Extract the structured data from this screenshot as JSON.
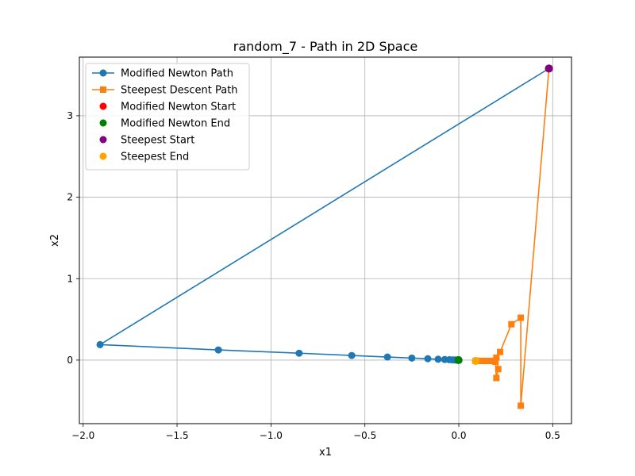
{
  "chart_data": {
    "type": "line",
    "title": "random_7 - Path in 2D Space",
    "xlabel": "x1",
    "ylabel": "x2",
    "xlim": [
      -2.02,
      0.6
    ],
    "ylim": [
      -0.78,
      3.72
    ],
    "xticks": [
      -2.0,
      -1.5,
      -1.0,
      -0.5,
      0.0,
      0.5
    ],
    "xtick_labels": [
      "−2.0",
      "−1.5",
      "−1.0",
      "−0.5",
      "0.0",
      "0.5"
    ],
    "yticks": [
      0,
      1,
      2,
      3
    ],
    "ytick_labels": [
      "0",
      "1",
      "2",
      "3"
    ],
    "grid": true,
    "legend_position": "top-left",
    "series": [
      {
        "name": "Modified Newton Path",
        "kind": "line",
        "marker": "circle",
        "color": "#1f77b4",
        "x": [
          0.48,
          -1.91,
          -1.28,
          -0.85,
          -0.57,
          -0.38,
          -0.25,
          -0.165,
          -0.11,
          -0.075,
          -0.05,
          -0.033,
          -0.022,
          -0.015,
          -0.01,
          -0.006,
          -0.003,
          -0.001
        ],
        "y": [
          3.58,
          0.19,
          0.125,
          0.085,
          0.057,
          0.038,
          0.025,
          0.017,
          0.011,
          0.0075,
          0.005,
          0.0033,
          0.0022,
          0.0015,
          0.001,
          0.0006,
          0.0003,
          0.0001
        ]
      },
      {
        "name": "Steepest Descent Path",
        "kind": "line",
        "marker": "square",
        "color": "#ff7f0e",
        "x": [
          0.48,
          0.33,
          0.33,
          0.28,
          0.22,
          0.2,
          0.21,
          0.2,
          0.195,
          0.19,
          0.18,
          0.17,
          0.16,
          0.15,
          0.14,
          0.13,
          0.12,
          0.11,
          0.1,
          0.09
        ],
        "y": [
          3.58,
          -0.56,
          0.52,
          0.44,
          0.1,
          0.03,
          -0.11,
          -0.22,
          -0.02,
          -0.01,
          -0.01,
          -0.01,
          -0.01,
          -0.01,
          -0.01,
          -0.01,
          -0.01,
          -0.01,
          -0.01,
          -0.01
        ]
      },
      {
        "name": "Modified Newton Start",
        "kind": "scatter",
        "color": "#ff0000",
        "x": [
          0.48
        ],
        "y": [
          3.58
        ]
      },
      {
        "name": "Modified Newton End",
        "kind": "scatter",
        "color": "#008000",
        "x": [
          -0.001
        ],
        "y": [
          0.0
        ]
      },
      {
        "name": "Steepest Start",
        "kind": "scatter",
        "color": "#800080",
        "x": [
          0.48
        ],
        "y": [
          3.58
        ]
      },
      {
        "name": "Steepest End",
        "kind": "scatter",
        "color": "#ffa500",
        "x": [
          0.09
        ],
        "y": [
          -0.01
        ]
      }
    ]
  }
}
